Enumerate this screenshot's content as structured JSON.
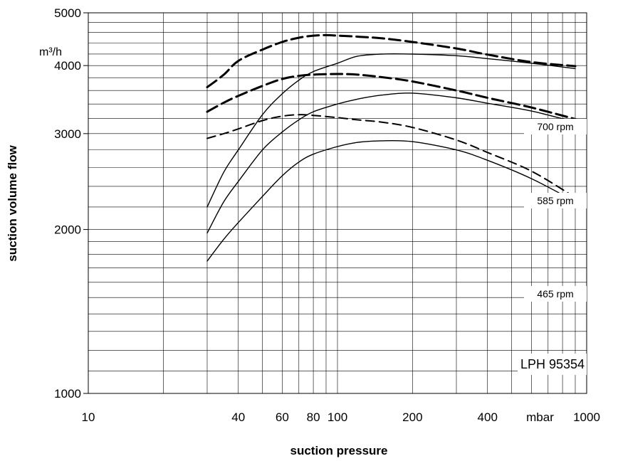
{
  "chart_data": {
    "type": "line",
    "xlabel": "suction pressure",
    "ylabel": "suction volume flow",
    "xscale": "log",
    "yscale": "log",
    "xlim": [
      10,
      1000
    ],
    "ylim": [
      1000,
      5000
    ],
    "x_ticks": [
      "10",
      "40",
      "60",
      "80",
      "100",
      "200",
      "400",
      "mbar",
      "1000"
    ],
    "x_tick_values": [
      10,
      40,
      60,
      80,
      100,
      200,
      400,
      650,
      1000
    ],
    "y_ticks": [
      "1000",
      "2000",
      "3000",
      "4000",
      "5000"
    ],
    "y_tick_values": [
      1000,
      2000,
      3000,
      4000,
      5000
    ],
    "y_unit": "m³/h",
    "grid": true,
    "annotations": {
      "model": "LPH 95354",
      "rpm_700": "700 rpm",
      "rpm_585": "585 rpm",
      "rpm_465": "465 rpm"
    },
    "series": [
      {
        "style": "dashed",
        "weight": "heavy",
        "x": [
          30,
          35,
          40,
          50,
          60,
          70,
          80,
          90,
          100,
          120,
          150,
          200,
          300,
          400,
          600,
          900
        ],
        "y": [
          3650,
          3850,
          4080,
          4280,
          4420,
          4500,
          4540,
          4550,
          4540,
          4520,
          4490,
          4420,
          4300,
          4190,
          4060,
          3990
        ]
      },
      {
        "style": "solid",
        "x": [
          30,
          35,
          40,
          50,
          60,
          70,
          80,
          100,
          120,
          150,
          200,
          300,
          400,
          600,
          900
        ],
        "y": [
          2200,
          2550,
          2800,
          3250,
          3550,
          3760,
          3900,
          4040,
          4160,
          4200,
          4200,
          4170,
          4120,
          4040,
          3950
        ]
      },
      {
        "style": "dashed",
        "weight": "heavy",
        "x": [
          30,
          35,
          40,
          50,
          60,
          70,
          80,
          100,
          120,
          150,
          200,
          300,
          400,
          600,
          900
        ],
        "y": [
          3290,
          3420,
          3520,
          3670,
          3780,
          3830,
          3850,
          3860,
          3850,
          3810,
          3740,
          3600,
          3490,
          3350,
          3190
        ]
      },
      {
        "style": "solid",
        "x": [
          30,
          35,
          40,
          50,
          60,
          70,
          80,
          100,
          120,
          150,
          200,
          300,
          400,
          600,
          900
        ],
        "y": [
          1970,
          2250,
          2450,
          2800,
          3020,
          3180,
          3290,
          3400,
          3470,
          3530,
          3560,
          3490,
          3410,
          3300,
          3150
        ]
      },
      {
        "style": "dashed",
        "x": [
          30,
          35,
          40,
          50,
          60,
          70,
          80,
          100,
          120,
          150,
          200,
          300,
          400,
          600,
          900
        ],
        "y": [
          2940,
          3000,
          3060,
          3170,
          3230,
          3250,
          3240,
          3210,
          3180,
          3150,
          3080,
          2920,
          2770,
          2560,
          2290
        ]
      },
      {
        "style": "solid",
        "x": [
          30,
          35,
          40,
          50,
          60,
          70,
          80,
          100,
          120,
          150,
          200,
          300,
          400,
          600,
          900
        ],
        "y": [
          1750,
          1920,
          2060,
          2300,
          2510,
          2660,
          2750,
          2840,
          2890,
          2910,
          2900,
          2800,
          2680,
          2480,
          2250
        ]
      }
    ]
  }
}
